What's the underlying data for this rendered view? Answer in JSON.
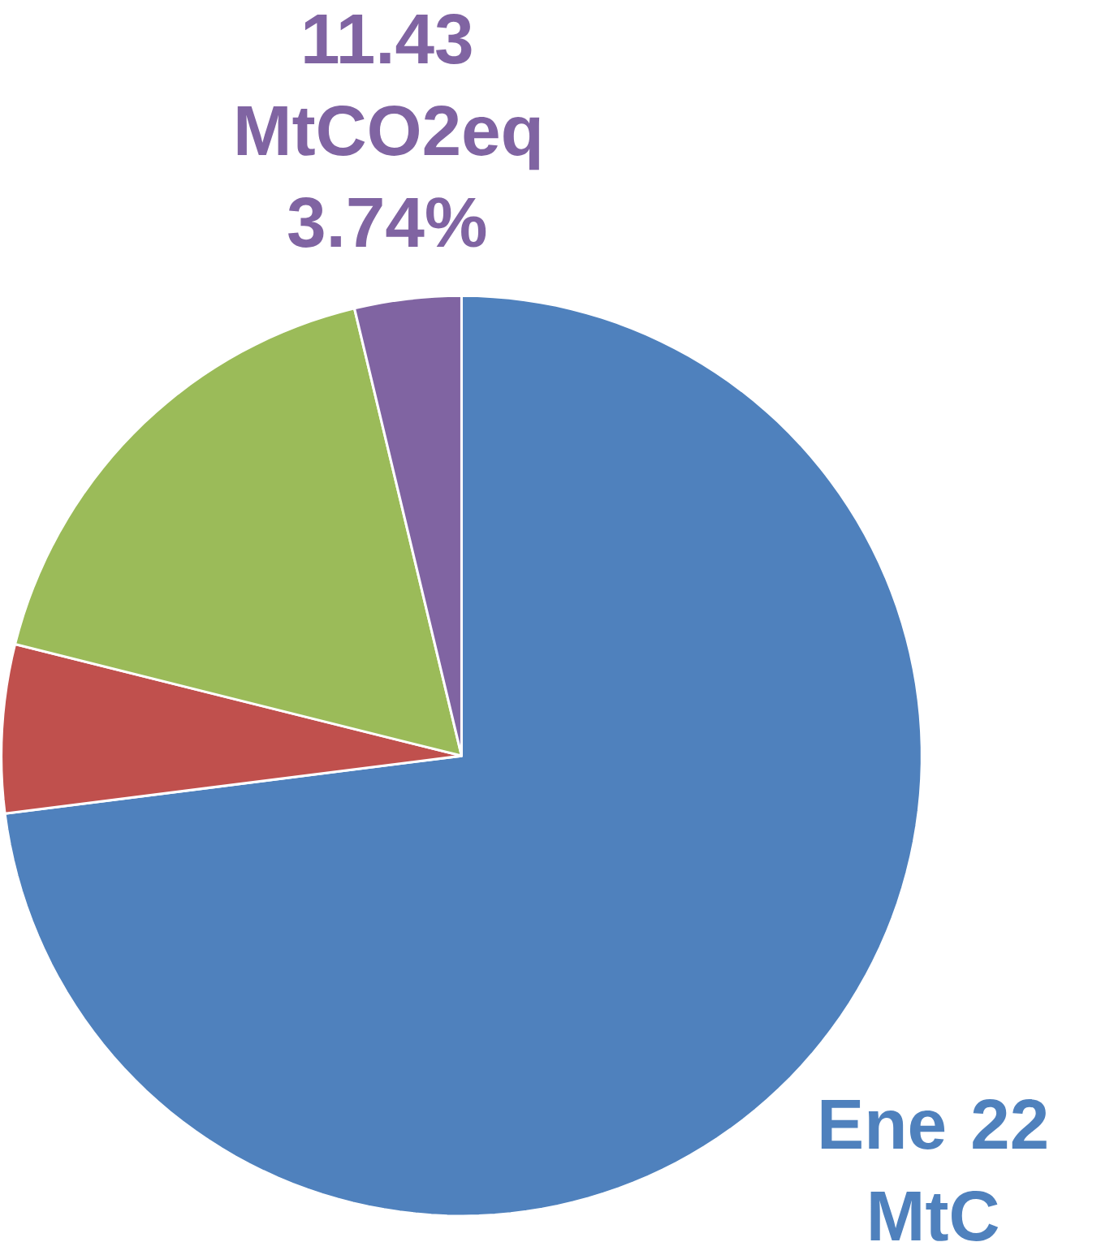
{
  "chart_data": {
    "type": "pie",
    "categories": [
      null,
      null,
      null,
      null
    ],
    "values": [
      73.0,
      5.9,
      17.36,
      3.74
    ],
    "colors": [
      "#4f81bd",
      "#c0504d",
      "#9bbb59",
      "#8064a2"
    ],
    "value_labels": [
      "Ene 22 MtC",
      null,
      null,
      "11.43 MtCO2eq 3.74%"
    ]
  }
}
